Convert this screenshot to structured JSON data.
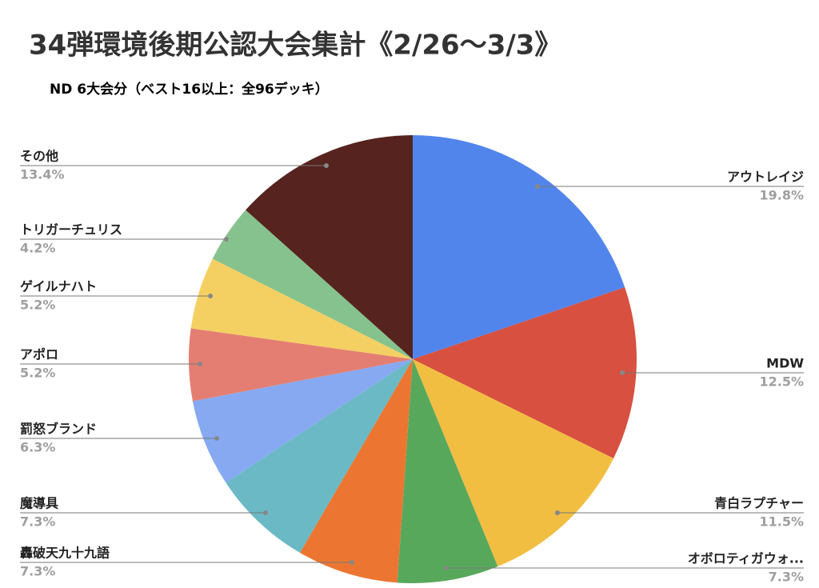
{
  "chart_data": {
    "type": "pie",
    "title": "34弾環境後期公認大会集計《2/26〜3/3》",
    "subtitle": "ND 6大会分（ベスト16以上：全96デッキ）",
    "categories": [
      "アウトレイジ",
      "MDW",
      "青白ラプチャー",
      "オボロティガウォ...",
      "轟破天九十九語",
      "魔導具",
      "罰怒ブランド",
      "アポロ",
      "ゲイルナハト",
      "トリガーチュリス",
      "その他"
    ],
    "values": [
      19.8,
      12.5,
      11.5,
      7.3,
      7.3,
      7.3,
      6.3,
      5.2,
      5.2,
      4.2,
      13.4
    ],
    "value_labels": [
      "19.8%",
      "12.5%",
      "11.5%",
      "7.3%",
      "7.3%",
      "7.3%",
      "6.3%",
      "5.2%",
      "5.2%",
      "4.2%",
      "13.4%"
    ],
    "colors": [
      "#5285ec",
      "#d8503f",
      "#f1be42",
      "#58a85c",
      "#ec7631",
      "#6ab9c4",
      "#86a9f1",
      "#e47e72",
      "#f4d063",
      "#86c28d",
      "#56231f"
    ]
  }
}
